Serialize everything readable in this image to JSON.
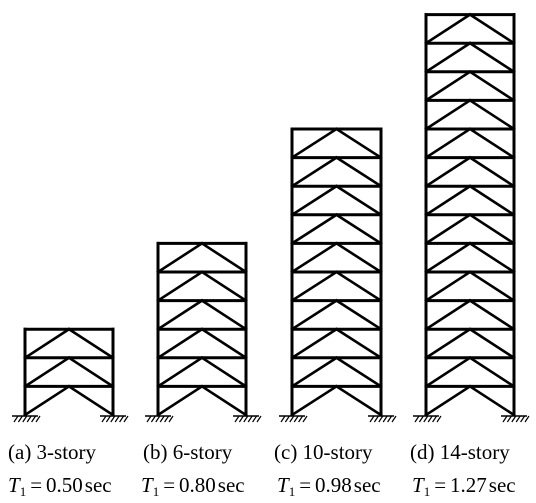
{
  "frames": [
    {
      "label": "(a) 3-story",
      "stories": 3,
      "period": {
        "symbol": "T",
        "subscript": "1",
        "equals": "=",
        "value": "0.50",
        "unit": "sec"
      }
    },
    {
      "label": "(b) 6-story",
      "stories": 6,
      "period": {
        "symbol": "T",
        "subscript": "1",
        "equals": "=",
        "value": "0.80",
        "unit": "sec"
      }
    },
    {
      "label": "(c) 10-story",
      "stories": 10,
      "period": {
        "symbol": "T",
        "subscript": "1",
        "equals": "=",
        "value": "0.98",
        "unit": "sec"
      }
    },
    {
      "label": "(d) 14-story",
      "stories": 14,
      "period": {
        "symbol": "T",
        "subscript": "1",
        "equals": "=",
        "value": "1.27",
        "unit": "sec"
      }
    }
  ],
  "style": {
    "stroke": "#000000"
  }
}
